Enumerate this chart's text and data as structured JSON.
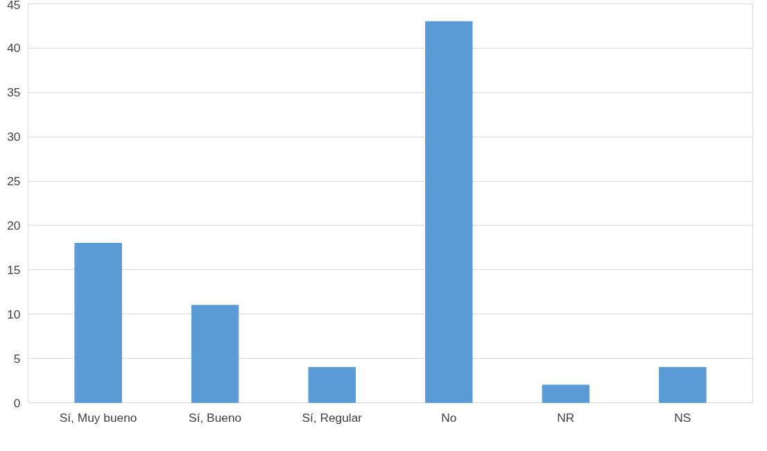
{
  "chart_data": {
    "type": "bar",
    "categories": [
      "Sí, Muy bueno",
      "Sí, Bueno",
      "Sí, Regular",
      "No",
      "NR",
      "NS"
    ],
    "values": [
      18,
      11,
      4,
      43,
      2,
      4
    ],
    "color": "#5b9bd5",
    "ylim": [
      0,
      45
    ],
    "yticks": [
      0,
      5,
      10,
      15,
      20,
      25,
      30,
      35,
      40,
      45
    ],
    "grid": "y"
  }
}
